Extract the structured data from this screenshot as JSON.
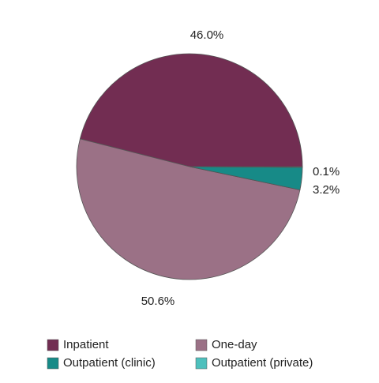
{
  "chart_data": {
    "type": "pie",
    "categories": [
      "Inpatient",
      "One-day",
      "Outpatient (clinic)",
      "Outpatient (private)"
    ],
    "values": [
      46.0,
      50.6,
      3.2,
      0.1
    ],
    "value_labels": [
      "46.0%",
      "50.6%",
      "3.2%",
      "0.1%"
    ],
    "colors": [
      "#722d52",
      "#9b7186",
      "#178a87",
      "#4ec0bd"
    ],
    "legend": "bottom"
  }
}
